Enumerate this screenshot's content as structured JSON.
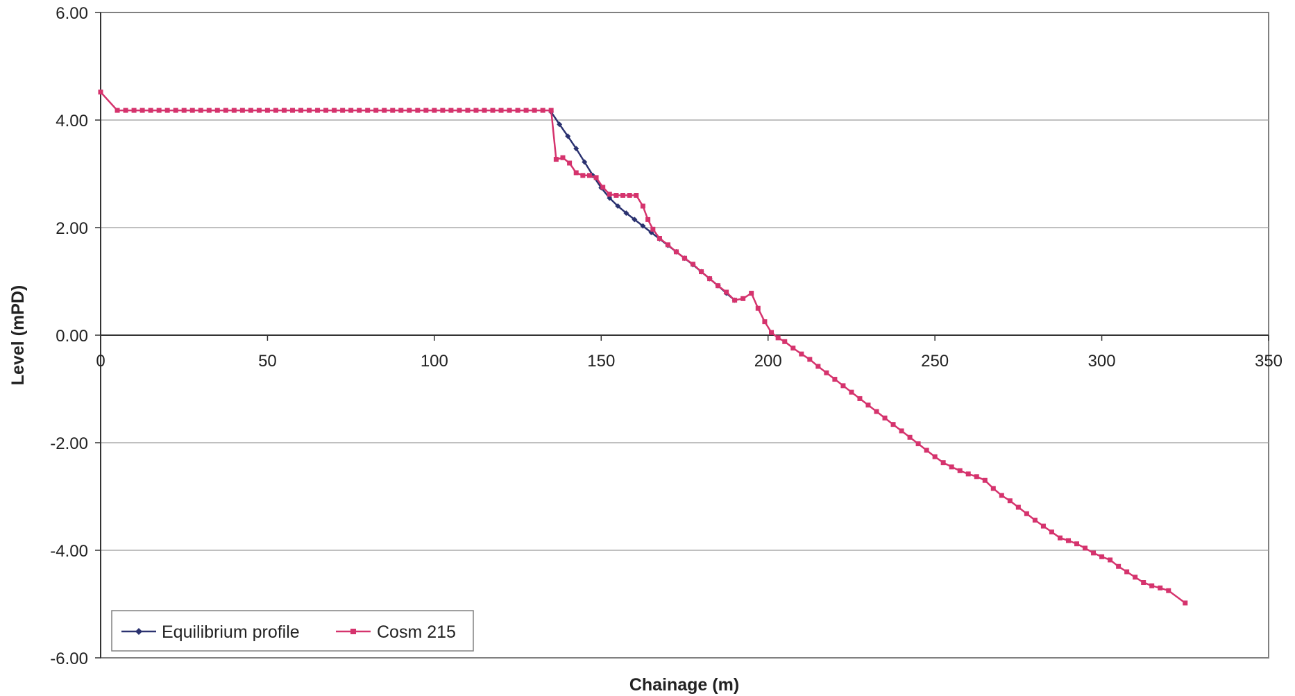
{
  "chart_data": {
    "type": "line",
    "xlabel": "Chainage (m)",
    "ylabel": "Level (mPD)",
    "xlim": [
      0,
      350
    ],
    "ylim": [
      -6,
      6
    ],
    "x_ticks": [
      0,
      50,
      100,
      150,
      200,
      250,
      300,
      350
    ],
    "y_ticks": [
      6,
      4,
      2,
      0,
      -2,
      -4,
      -6
    ],
    "y_tick_labels": [
      "6.00",
      "4.00",
      "2.00",
      "0.00",
      "-2.00",
      "-4.00",
      "-6.00"
    ],
    "grid": "horizontal",
    "legend_position": "bottom-left",
    "series": [
      {
        "name": "Equilibrium profile",
        "color": "#2b3270",
        "marker": "diamond",
        "x": [
          135,
          137.5,
          140,
          142.5,
          145,
          147.5,
          150,
          152.5,
          155,
          157.5,
          160,
          162.5,
          165,
          167.5,
          170,
          172.5,
          175,
          177.5,
          180,
          182.5,
          185,
          187.5,
          190
        ],
        "y": [
          4.15,
          3.92,
          3.7,
          3.47,
          3.22,
          2.97,
          2.74,
          2.55,
          2.4,
          2.27,
          2.15,
          2.03,
          1.91,
          1.79,
          1.67,
          1.55,
          1.43,
          1.31,
          1.18,
          1.05,
          0.92,
          0.78,
          0.65
        ]
      },
      {
        "name": "Cosm 215",
        "color": "#d5336d",
        "marker": "square",
        "x": [
          0,
          5,
          7.5,
          10,
          12.5,
          15,
          17.5,
          20,
          22.5,
          25,
          27.5,
          30,
          32.5,
          35,
          37.5,
          40,
          42.5,
          45,
          47.5,
          50,
          52.5,
          55,
          57.5,
          60,
          62.5,
          65,
          67.5,
          70,
          72.5,
          75,
          77.5,
          80,
          82.5,
          85,
          87.5,
          90,
          92.5,
          95,
          97.5,
          100,
          102.5,
          105,
          107.5,
          110,
          112.5,
          115,
          117.5,
          120,
          122.5,
          125,
          127.5,
          130,
          132.5,
          135,
          136.5,
          138.5,
          140.5,
          142.5,
          144.5,
          146.5,
          148.5,
          150.5,
          152.5,
          154.5,
          156.5,
          158.5,
          160.5,
          162.5,
          164,
          165.5,
          167.5,
          170,
          172.5,
          175,
          177.5,
          180,
          182.5,
          185,
          187.5,
          190,
          192.5,
          195,
          197,
          199,
          201,
          203,
          205,
          207.5,
          210,
          212.5,
          215,
          217.5,
          220,
          222.5,
          225,
          227.5,
          230,
          232.5,
          235,
          237.5,
          240,
          242.5,
          245,
          247.5,
          250,
          252.5,
          255,
          257.5,
          260,
          262.5,
          265,
          267.5,
          270,
          272.5,
          275,
          277.5,
          280,
          282.5,
          285,
          287.5,
          290,
          292.5,
          295,
          297.5,
          300,
          302.5,
          305,
          307.5,
          310,
          312.5,
          315,
          317.5,
          320,
          325
        ],
        "y": [
          4.52,
          4.18,
          4.18,
          4.18,
          4.18,
          4.18,
          4.18,
          4.18,
          4.18,
          4.18,
          4.18,
          4.18,
          4.18,
          4.18,
          4.18,
          4.18,
          4.18,
          4.18,
          4.18,
          4.18,
          4.18,
          4.18,
          4.18,
          4.18,
          4.18,
          4.18,
          4.18,
          4.18,
          4.18,
          4.18,
          4.18,
          4.18,
          4.18,
          4.18,
          4.18,
          4.18,
          4.18,
          4.18,
          4.18,
          4.18,
          4.18,
          4.18,
          4.18,
          4.18,
          4.18,
          4.18,
          4.18,
          4.18,
          4.18,
          4.18,
          4.18,
          4.18,
          4.18,
          4.18,
          3.27,
          3.3,
          3.2,
          3.02,
          2.97,
          2.97,
          2.93,
          2.75,
          2.62,
          2.6,
          2.6,
          2.6,
          2.6,
          2.4,
          2.15,
          1.97,
          1.8,
          1.68,
          1.55,
          1.43,
          1.32,
          1.18,
          1.05,
          0.92,
          0.8,
          0.65,
          0.68,
          0.78,
          0.5,
          0.25,
          0.05,
          -0.05,
          -0.12,
          -0.24,
          -0.35,
          -0.45,
          -0.58,
          -0.7,
          -0.82,
          -0.94,
          -1.06,
          -1.18,
          -1.3,
          -1.42,
          -1.54,
          -1.66,
          -1.78,
          -1.9,
          -2.02,
          -2.14,
          -2.26,
          -2.37,
          -2.45,
          -2.52,
          -2.58,
          -2.63,
          -2.7,
          -2.85,
          -2.98,
          -3.08,
          -3.2,
          -3.32,
          -3.44,
          -3.55,
          -3.66,
          -3.77,
          -3.82,
          -3.88,
          -3.96,
          -4.05,
          -4.12,
          -4.18,
          -4.3,
          -4.4,
          -4.5,
          -4.6,
          -4.66,
          -4.7,
          -4.75,
          -4.98
        ]
      }
    ]
  }
}
